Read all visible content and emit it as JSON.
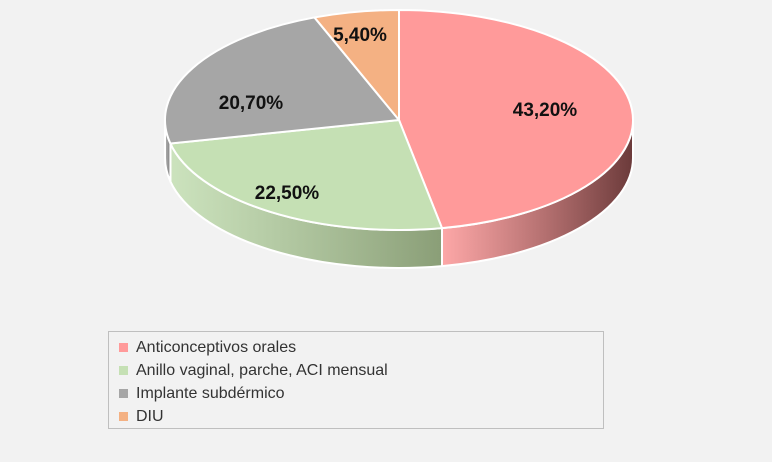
{
  "chart_data": {
    "type": "pie",
    "style": "3d",
    "title": "",
    "legend_position": "bottom",
    "categories": [
      "Anticonceptivos orales",
      "Anillo vaginal, parche, ACI mensual",
      "Implante subdérmico",
      "DIU"
    ],
    "values": [
      43.2,
      22.5,
      20.7,
      5.4
    ],
    "labels": [
      "43,20%",
      "22,50%",
      "20,70%",
      "5,40%"
    ],
    "colors": [
      "#ff9a9a",
      "#c5e0b4",
      "#a6a6a6",
      "#f4b183"
    ],
    "side_colors": [
      "#6b3a3a",
      "#8a9e77",
      "#7f7f7f",
      "#b07c52"
    ]
  }
}
